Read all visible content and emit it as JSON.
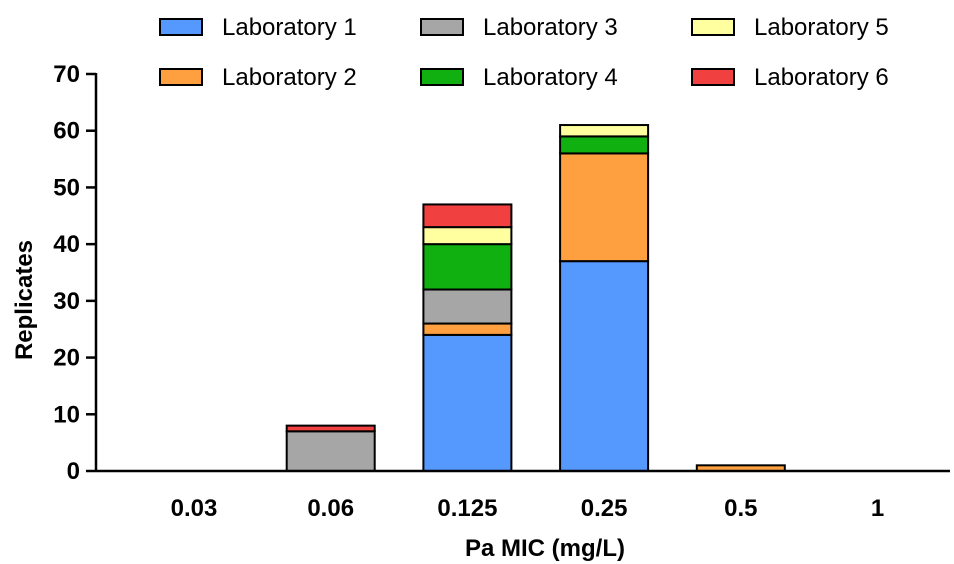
{
  "chart_data": {
    "type": "bar",
    "stacked": true,
    "categories": [
      "0.03",
      "0.06",
      "0.125",
      "0.25",
      "0.5",
      "1"
    ],
    "series": [
      {
        "name": "Laboratory 1",
        "color": "#5599ff",
        "values": [
          0,
          0,
          24,
          37,
          0,
          0
        ]
      },
      {
        "name": "Laboratory 2",
        "color": "#ffa040",
        "values": [
          0,
          0,
          2,
          19,
          1,
          0
        ]
      },
      {
        "name": "Laboratory 3",
        "color": "#a6a6a6",
        "values": [
          0,
          7,
          6,
          0,
          0,
          0
        ]
      },
      {
        "name": "Laboratory 4",
        "color": "#10b010",
        "values": [
          0,
          0,
          8,
          3,
          0,
          0
        ]
      },
      {
        "name": "Laboratory 5",
        "color": "#ffffa0",
        "values": [
          0,
          0,
          3,
          2,
          0,
          0
        ]
      },
      {
        "name": "Laboratory 6",
        "color": "#f04040",
        "values": [
          0,
          1,
          4,
          0,
          0,
          0
        ]
      }
    ],
    "xlabel": "Pa MIC (mg/L)",
    "ylabel": "Replicates",
    "ylim": [
      0,
      70
    ],
    "yticks": [
      0,
      10,
      20,
      30,
      40,
      50,
      60,
      70
    ],
    "grid": false,
    "legend_position": "top"
  }
}
